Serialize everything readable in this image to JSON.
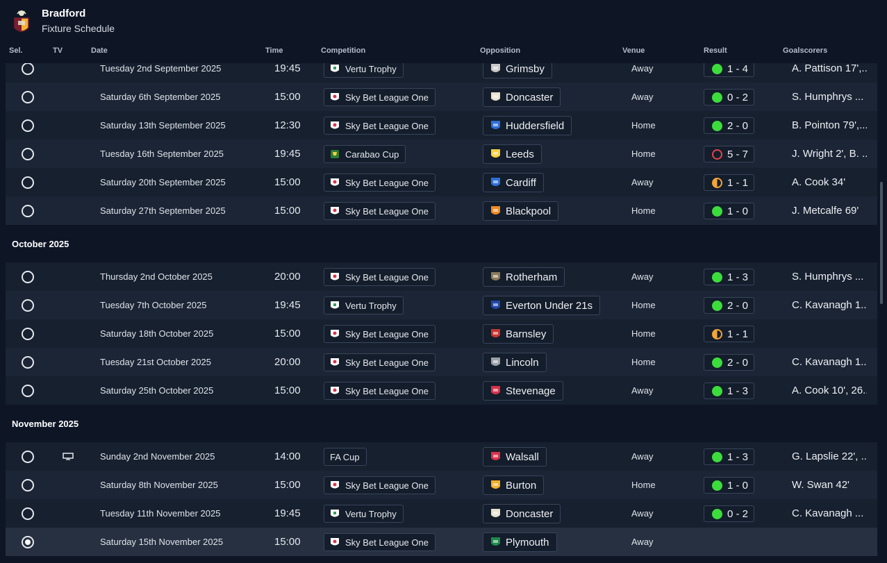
{
  "header": {
    "club_name": "Bradford",
    "subtitle": "Fixture Schedule"
  },
  "columns": {
    "sel": "Sel.",
    "tv": "TV",
    "date": "Date",
    "time": "Time",
    "competition": "Competition",
    "opposition": "Opposition",
    "venue": "Venue",
    "result": "Result",
    "goalscorers": "Goalscorers"
  },
  "months": {
    "oct": "October 2025",
    "nov": "November 2025"
  },
  "fixtures": [
    {
      "date": "Tuesday 2nd September 2025",
      "time": "19:45",
      "competition": "Vertu Trophy",
      "opposition": "Grimsby",
      "venue": "Away",
      "result": "1 - 4",
      "outcome": "win",
      "scorers": "A. Pattison 17',..."
    },
    {
      "date": "Saturday 6th September 2025",
      "time": "15:00",
      "competition": "Sky Bet League One",
      "opposition": "Doncaster",
      "venue": "Away",
      "result": "0 - 2",
      "outcome": "win",
      "scorers": "S. Humphrys ..."
    },
    {
      "date": "Saturday 13th September 2025",
      "time": "12:30",
      "competition": "Sky Bet League One",
      "opposition": "Huddersfield",
      "venue": "Home",
      "result": "2 - 0",
      "outcome": "win",
      "scorers": "B. Pointon 79',..."
    },
    {
      "date": "Tuesday 16th September 2025",
      "time": "19:45",
      "competition": "Carabao Cup",
      "opposition": "Leeds",
      "venue": "Home",
      "result": "5 - 7",
      "outcome": "loss",
      "scorers": "J. Wright 2', B. ..."
    },
    {
      "date": "Saturday 20th September 2025",
      "time": "15:00",
      "competition": "Sky Bet League One",
      "opposition": "Cardiff",
      "venue": "Away",
      "result": "1 - 1",
      "outcome": "draw",
      "scorers": "A. Cook 34'"
    },
    {
      "date": "Saturday 27th September 2025",
      "time": "15:00",
      "competition": "Sky Bet League One",
      "opposition": "Blackpool",
      "venue": "Home",
      "result": "1 - 0",
      "outcome": "win",
      "scorers": "J. Metcalfe 69'"
    },
    {
      "date": "Thursday 2nd October 2025",
      "time": "20:00",
      "competition": "Sky Bet League One",
      "opposition": "Rotherham",
      "venue": "Away",
      "result": "1 - 3",
      "outcome": "win",
      "scorers": "S. Humphrys ..."
    },
    {
      "date": "Tuesday 7th October 2025",
      "time": "19:45",
      "competition": "Vertu Trophy",
      "opposition": "Everton Under 21s",
      "venue": "Home",
      "result": "2 - 0",
      "outcome": "win",
      "scorers": "C. Kavanagh 1..."
    },
    {
      "date": "Saturday 18th October 2025",
      "time": "15:00",
      "competition": "Sky Bet League One",
      "opposition": "Barnsley",
      "venue": "Home",
      "result": "1 - 1",
      "outcome": "draw",
      "scorers": ""
    },
    {
      "date": "Tuesday 21st October 2025",
      "time": "20:00",
      "competition": "Sky Bet League One",
      "opposition": "Lincoln",
      "venue": "Home",
      "result": "2 - 0",
      "outcome": "win",
      "scorers": "C. Kavanagh 1..."
    },
    {
      "date": "Saturday 25th October 2025",
      "time": "15:00",
      "competition": "Sky Bet League One",
      "opposition": "Stevenage",
      "venue": "Away",
      "result": "1 - 3",
      "outcome": "win",
      "scorers": "A. Cook 10', 26..."
    },
    {
      "date": "Sunday 2nd November 2025",
      "time": "14:00",
      "competition": "FA Cup",
      "opposition": "Walsall",
      "venue": "Away",
      "result": "1 - 3",
      "outcome": "win",
      "scorers": "G. Lapslie 22', ..."
    },
    {
      "date": "Saturday 8th November 2025",
      "time": "15:00",
      "competition": "Sky Bet League One",
      "opposition": "Burton",
      "venue": "Home",
      "result": "1 - 0",
      "outcome": "win",
      "scorers": "W. Swan 42'"
    },
    {
      "date": "Tuesday 11th November 2025",
      "time": "19:45",
      "competition": "Vertu Trophy",
      "opposition": "Doncaster",
      "venue": "Away",
      "result": "0 - 2",
      "outcome": "win",
      "scorers": "C. Kavanagh ..."
    },
    {
      "date": "Saturday 15th November 2025",
      "time": "15:00",
      "competition": "Sky Bet League One",
      "opposition": "Plymouth",
      "venue": "Away",
      "result": "",
      "outcome": "",
      "scorers": ""
    }
  ],
  "colors": {
    "background": "#0e1626",
    "row": "#16202f",
    "row_alt": "#1b2535",
    "win": "#3ddc3d",
    "loss": "#e0464a",
    "draw": "#f2a43a"
  },
  "icons": {
    "crest": "bradford-crest-icon",
    "tv": "tv-icon",
    "radio": "radio-icon"
  }
}
